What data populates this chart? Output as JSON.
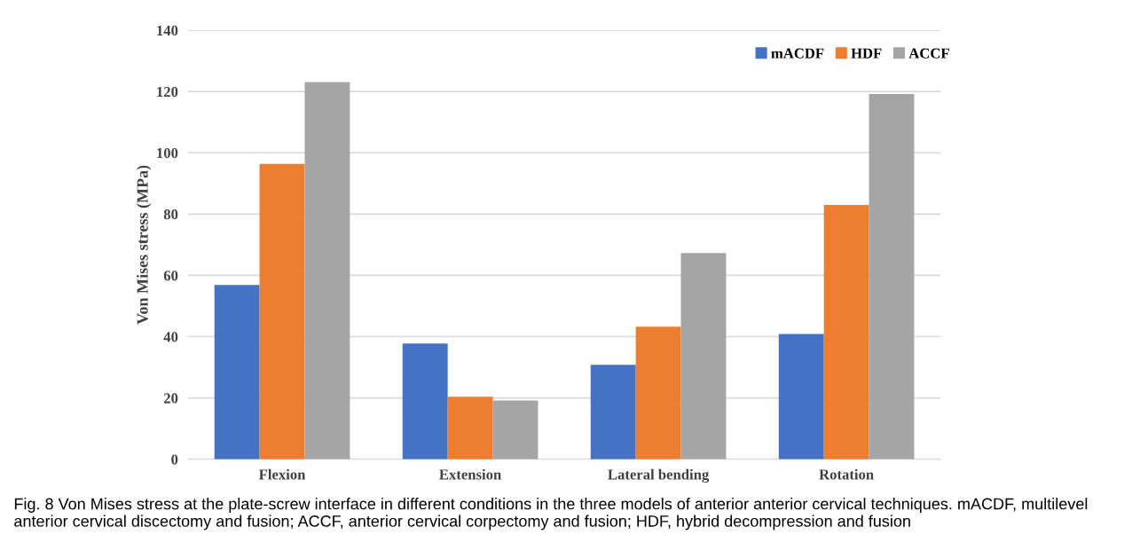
{
  "chart_data": {
    "type": "bar",
    "ylabel": "Von Mises stress (MPa)",
    "categories": [
      "Flexion",
      "Extension",
      "Lateral bending",
      "Rotation"
    ],
    "series": [
      {
        "name": "mACDF",
        "color": "#4472c4",
        "values": [
          56.9,
          37.8,
          30.8,
          40.9
        ]
      },
      {
        "name": "HDF",
        "color": "#ed7d31",
        "values": [
          96.4,
          20.4,
          43.3,
          83.0
        ]
      },
      {
        "name": "ACCF",
        "color": "#a5a5a5",
        "values": [
          123.1,
          19.2,
          67.3,
          119.2
        ]
      }
    ],
    "ylim": [
      0,
      140
    ],
    "yticks": [
      0,
      20,
      40,
      60,
      80,
      100,
      120,
      140
    ],
    "grid": "y",
    "legend": "top right",
    "annotations": [
      "Fig. 8 Von Mises stress at the plate-screw interface in different conditions in the three models of anterior anterior cervical techniques. mACDF, multilevel anterior cervical discectomy and fusion; ACCF, anterior cervical corpectomy and fusion; HDF, hybrid decompression and fusion"
    ]
  }
}
